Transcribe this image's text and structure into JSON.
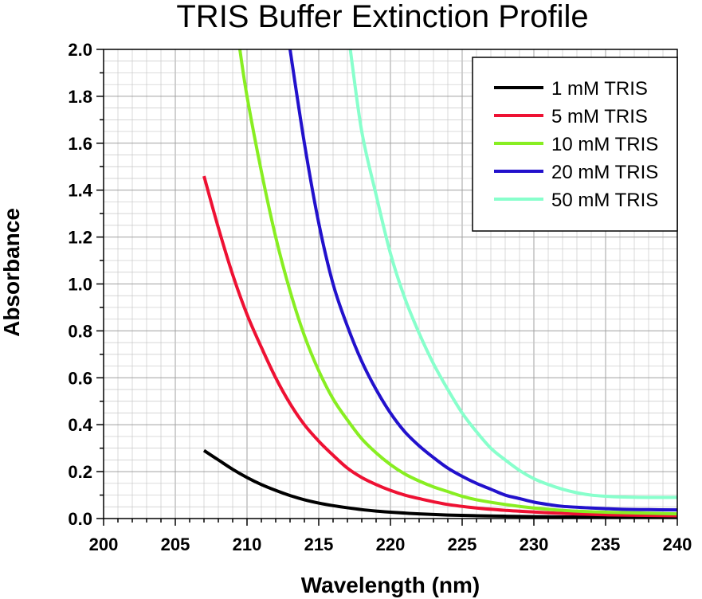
{
  "chart_data": {
    "type": "line",
    "title": "TRIS Buffer Extinction Profile",
    "xlabel": "Wavelength (nm)",
    "ylabel": "Absorbance",
    "xlim": [
      200,
      240
    ],
    "ylim": [
      0,
      2.0
    ],
    "xticks": [
      "200",
      "205",
      "210",
      "215",
      "220",
      "225",
      "230",
      "235",
      "240"
    ],
    "yticks": [
      "0.0",
      "0.2",
      "0.4",
      "0.6",
      "0.8",
      "1.0",
      "1.2",
      "1.4",
      "1.6",
      "1.8",
      "2.0"
    ],
    "grid": true,
    "legend_position": "top-right",
    "series": [
      {
        "name": "1 mM TRIS",
        "color": "#000000",
        "x": [
          207,
          208,
          209,
          210,
          211,
          212,
          213,
          214,
          215,
          216,
          217,
          218,
          219,
          220,
          222,
          224,
          226,
          228,
          230,
          232,
          235,
          240
        ],
        "y": [
          0.29,
          0.25,
          0.21,
          0.175,
          0.145,
          0.12,
          0.098,
          0.08,
          0.066,
          0.055,
          0.046,
          0.038,
          0.032,
          0.027,
          0.02,
          0.015,
          0.012,
          0.01,
          0.008,
          0.007,
          0.006,
          0.005
        ]
      },
      {
        "name": "5 mM TRIS",
        "color": "#ee1133",
        "x": [
          207,
          208,
          209,
          210,
          211,
          212,
          213,
          214,
          215,
          216,
          217,
          218,
          219,
          220,
          221,
          222,
          224,
          226,
          228,
          230,
          232,
          235,
          240
        ],
        "y": [
          1.46,
          1.24,
          1.04,
          0.87,
          0.73,
          0.6,
          0.49,
          0.4,
          0.33,
          0.27,
          0.215,
          0.175,
          0.145,
          0.12,
          0.1,
          0.085,
          0.06,
          0.045,
          0.035,
          0.028,
          0.022,
          0.016,
          0.012
        ]
      },
      {
        "name": "10 mM TRIS",
        "color": "#88ee22",
        "x": [
          209.5,
          210,
          211,
          212,
          213,
          214,
          215,
          216,
          217,
          218,
          219,
          220,
          221,
          222,
          223,
          224,
          225,
          226,
          228,
          230,
          232,
          235,
          240
        ],
        "y": [
          2.0,
          1.8,
          1.48,
          1.2,
          0.97,
          0.78,
          0.63,
          0.51,
          0.42,
          0.34,
          0.28,
          0.23,
          0.19,
          0.16,
          0.135,
          0.115,
          0.095,
          0.08,
          0.06,
          0.045,
          0.035,
          0.027,
          0.02
        ]
      },
      {
        "name": "20 mM TRIS",
        "color": "#2211cc",
        "x": [
          213,
          214,
          215,
          216,
          217,
          218,
          219,
          220,
          221,
          222,
          223,
          224,
          225,
          226,
          227,
          228,
          229,
          230,
          231,
          232,
          234,
          236,
          238,
          240
        ],
        "y": [
          2.0,
          1.6,
          1.26,
          1.0,
          0.82,
          0.67,
          0.55,
          0.45,
          0.37,
          0.31,
          0.26,
          0.215,
          0.18,
          0.15,
          0.125,
          0.1,
          0.085,
          0.07,
          0.06,
          0.052,
          0.045,
          0.04,
          0.038,
          0.037
        ]
      },
      {
        "name": "50 mM TRIS",
        "color": "#88ffcc",
        "x": [
          217.2,
          218,
          219,
          220,
          221,
          222,
          223,
          224,
          225,
          226,
          227,
          228,
          229,
          230,
          231,
          232,
          233,
          234,
          235,
          236,
          238,
          240
        ],
        "y": [
          2.0,
          1.65,
          1.38,
          1.13,
          0.94,
          0.79,
          0.66,
          0.55,
          0.45,
          0.37,
          0.3,
          0.25,
          0.205,
          0.17,
          0.145,
          0.125,
          0.11,
          0.1,
          0.095,
          0.092,
          0.09,
          0.09
        ]
      }
    ]
  }
}
